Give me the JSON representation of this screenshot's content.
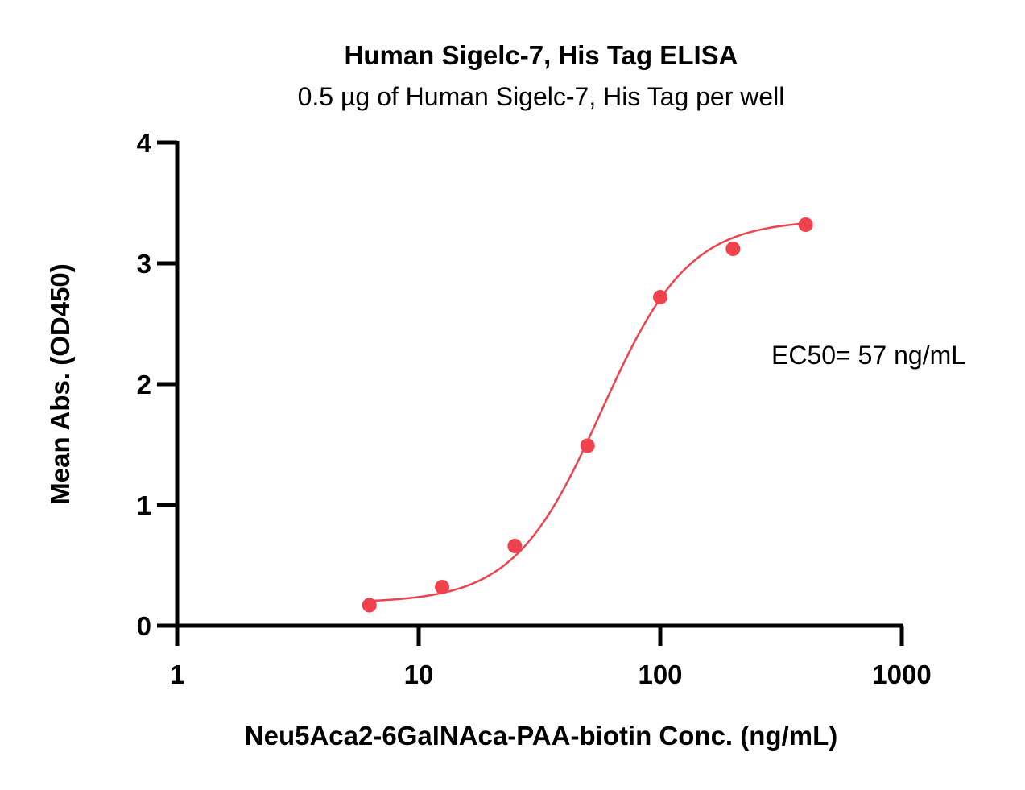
{
  "chart_data": {
    "type": "scatter",
    "title": "Human Sigelc-7, His Tag ELISA",
    "subtitle": "0.5 µg of Human Sigelc-7, His Tag per well",
    "xlabel": "Neu5Aca2-6GalNAca-PAA-biotin Conc. (ng/mL)",
    "ylabel": "Mean Abs. (OD450)",
    "x_scale": "log",
    "xlim": [
      1,
      1000
    ],
    "ylim": [
      0,
      4
    ],
    "x_ticks": [
      1,
      10,
      100,
      1000
    ],
    "x_tick_labels": [
      "1",
      "10",
      "100",
      "1000"
    ],
    "y_ticks": [
      0,
      1,
      2,
      3,
      4
    ],
    "y_tick_labels": [
      "0",
      "1",
      "2",
      "3",
      "4"
    ],
    "grid": false,
    "series": [
      {
        "x": [
          6.25,
          12.5,
          25,
          50,
          100,
          200,
          400
        ],
        "y": [
          0.17,
          0.32,
          0.66,
          1.49,
          2.72,
          3.12,
          3.32
        ],
        "color": "#f0424c",
        "fit_curve": {
          "model": "4PL",
          "bottom": 0.19,
          "top": 3.36,
          "ec50": 57,
          "hill": 2.4
        }
      }
    ],
    "annotations": [
      {
        "text": "EC50= 57 ng/mL"
      }
    ]
  }
}
